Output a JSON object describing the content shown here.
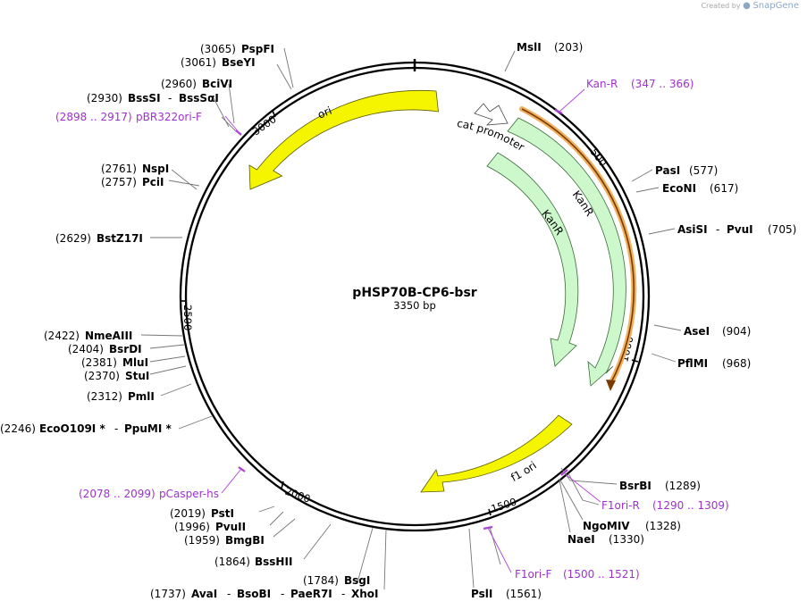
{
  "credit": {
    "prefix": "Created by",
    "brand": "SnapGene"
  },
  "plasmid": {
    "name": "pHSP70B-CP6-bsr",
    "length_label": "3350 bp"
  },
  "colors": {
    "ori": "#f5f500",
    "kan": "#ccf8cc",
    "promoter": "#ffffff",
    "primer": "#b040d8",
    "primer_outline": "#f0b060"
  },
  "ticks": [
    {
      "label": "500",
      "pos": 500
    },
    {
      "label": "1000",
      "pos": 1000
    },
    {
      "label": "1500",
      "pos": 1500
    },
    {
      "label": "2000",
      "pos": 2000
    },
    {
      "label": "2500",
      "pos": 2500
    },
    {
      "label": "3000",
      "pos": 3000
    }
  ],
  "features": [
    {
      "name": "ori",
      "label": "ori",
      "color": "ori"
    },
    {
      "name": "cat-promoter",
      "label": "cat promoter",
      "color": "promoter"
    },
    {
      "name": "kanr-outer",
      "label": "KanR",
      "color": "kan"
    },
    {
      "name": "kanr-inner",
      "label": "KanR",
      "color": "kan"
    },
    {
      "name": "f1-ori",
      "label": "f1 ori",
      "color": "ori"
    }
  ],
  "primers": [
    {
      "name": "Kan-R",
      "range": "(347 .. 366)"
    },
    {
      "name": "pBR322ori-F",
      "range": "(2898 .. 2917)"
    },
    {
      "name": "F1ori-R",
      "range": "(1290 .. 1309)"
    },
    {
      "name": "F1ori-F",
      "range": "(1500 .. 1521)"
    },
    {
      "name": "pCasper-hs",
      "range": "(2078 .. 2099)"
    }
  ],
  "sites": [
    {
      "names": [
        "MslI"
      ],
      "pos": "(203)"
    },
    {
      "names": [
        "PasI"
      ],
      "pos": "(577)"
    },
    {
      "names": [
        "EcoNI"
      ],
      "pos": "(617)"
    },
    {
      "names": [
        "AsiSI",
        "PvuI"
      ],
      "pos": "(705)"
    },
    {
      "names": [
        "AseI"
      ],
      "pos": "(904)"
    },
    {
      "names": [
        "PflMI"
      ],
      "pos": "(968)"
    },
    {
      "names": [
        "BsrBI"
      ],
      "pos": "(1289)"
    },
    {
      "names": [
        "NgoMIV"
      ],
      "pos": "(1328)"
    },
    {
      "names": [
        "NaeI"
      ],
      "pos": "(1330)"
    },
    {
      "names": [
        "PslI"
      ],
      "pos": "(1561)"
    },
    {
      "names": [
        "AvaI",
        "BsoBI",
        "PaeR7I",
        "XhoI"
      ],
      "pos": "(1737)"
    },
    {
      "names": [
        "BsgI"
      ],
      "pos": "(1784)"
    },
    {
      "names": [
        "BssHII"
      ],
      "pos": "(1864)"
    },
    {
      "names": [
        "BmgBI"
      ],
      "pos": "(1959)"
    },
    {
      "names": [
        "PvuII"
      ],
      "pos": "(1996)"
    },
    {
      "names": [
        "PstI"
      ],
      "pos": "(2019)"
    },
    {
      "names": [
        "EcoO109I *",
        "PpuMI *"
      ],
      "pos": "(2246)"
    },
    {
      "names": [
        "PmlI"
      ],
      "pos": "(2312)"
    },
    {
      "names": [
        "StuI"
      ],
      "pos": "(2370)"
    },
    {
      "names": [
        "MluI"
      ],
      "pos": "(2381)"
    },
    {
      "names": [
        "BsrDI"
      ],
      "pos": "(2404)"
    },
    {
      "names": [
        "NmeAIII"
      ],
      "pos": "(2422)"
    },
    {
      "names": [
        "BstZ17I"
      ],
      "pos": "(2629)"
    },
    {
      "names": [
        "PciI"
      ],
      "pos": "(2757)"
    },
    {
      "names": [
        "NspI"
      ],
      "pos": "(2761)"
    },
    {
      "names": [
        "BssSI",
        "BssSαI"
      ],
      "pos": "(2930)"
    },
    {
      "names": [
        "BciVI"
      ],
      "pos": "(2960)"
    },
    {
      "names": [
        "BseYI"
      ],
      "pos": "(3061)"
    },
    {
      "names": [
        "PspFI"
      ],
      "pos": "(3065)"
    }
  ]
}
